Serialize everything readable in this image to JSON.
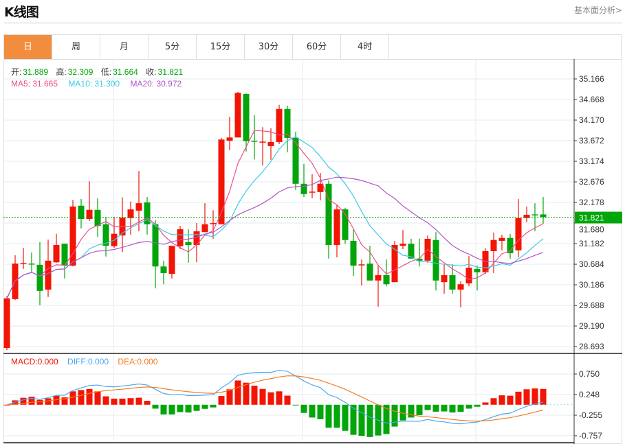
{
  "header": {
    "title": "K线图",
    "link": "基本面分析>"
  },
  "tabs": [
    {
      "label": "日",
      "active": true
    },
    {
      "label": "周"
    },
    {
      "label": "月"
    },
    {
      "label": "5分"
    },
    {
      "label": "15分"
    },
    {
      "label": "30分"
    },
    {
      "label": "60分"
    },
    {
      "label": "4时"
    }
  ],
  "ohlc_legend": {
    "open_label": "开:",
    "open": "31.889",
    "high_label": "高:",
    "high": "32.309",
    "low_label": "低:",
    "low": "31.664",
    "close_label": "收:",
    "close": "31.821"
  },
  "ma_legend": {
    "ma5": "MA5: 31.665",
    "ma10": "MA10: 31.300",
    "ma20": "MA20: 30.972"
  },
  "macd_legend": {
    "macd": "MACD:0.000",
    "diff": "DIFF:0.000",
    "dea": "DEA:0.000"
  },
  "colors": {
    "up": "#f21505",
    "down": "#02a50a",
    "ma5": "#ee4f8a",
    "ma10": "#3dc9e3",
    "ma20": "#b054c8",
    "diff": "#4aa8f0",
    "dea": "#f57c20",
    "accent": "#f28d3d"
  },
  "chart_data": {
    "type": "candlestick",
    "price_axis": {
      "ticks": [
        "35.166",
        "34.668",
        "34.170",
        "33.672",
        "33.174",
        "32.676",
        "32.178",
        "31.680",
        "31.182",
        "30.684",
        "30.186",
        "29.688",
        "29.190",
        "28.693"
      ],
      "range": [
        28.693,
        35.166
      ]
    },
    "current_price": "31.821",
    "macd_axis": {
      "ticks": [
        "0.750",
        "0.248",
        "-0.255",
        "-0.757"
      ],
      "range": [
        -0.757,
        0.75
      ]
    },
    "candles": [
      [
        28.66,
        29.91,
        28.61,
        29.86
      ],
      [
        29.84,
        30.9,
        29.82,
        30.7
      ],
      [
        30.69,
        31.08,
        30.57,
        30.71
      ],
      [
        30.7,
        30.97,
        30.49,
        30.68
      ],
      [
        30.67,
        31.22,
        29.69,
        30.04
      ],
      [
        30.07,
        31.28,
        29.89,
        30.77
      ],
      [
        30.73,
        31.42,
        30.72,
        31.15
      ],
      [
        31.18,
        31.18,
        30.34,
        30.65
      ],
      [
        30.65,
        32.24,
        30.63,
        32.08
      ],
      [
        32.1,
        32.26,
        31.55,
        31.78
      ],
      [
        31.78,
        32.69,
        31.73,
        32.0
      ],
      [
        32.0,
        32.28,
        31.35,
        31.61
      ],
      [
        31.65,
        31.83,
        30.87,
        31.13
      ],
      [
        31.12,
        31.83,
        31.08,
        31.42
      ],
      [
        31.38,
        32.3,
        30.98,
        31.81
      ],
      [
        31.8,
        32.2,
        31.4,
        32.01
      ],
      [
        31.98,
        32.94,
        31.48,
        32.16
      ],
      [
        32.18,
        32.31,
        31.4,
        31.65
      ],
      [
        31.65,
        31.75,
        30.1,
        30.63
      ],
      [
        30.63,
        30.77,
        30.2,
        30.47
      ],
      [
        30.45,
        31.13,
        30.34,
        31.13
      ],
      [
        31.12,
        31.61,
        31.05,
        31.53
      ],
      [
        31.22,
        31.53,
        30.72,
        31.15
      ],
      [
        31.15,
        31.68,
        30.73,
        31.48
      ],
      [
        31.46,
        32.16,
        31.46,
        31.65
      ],
      [
        31.66,
        31.99,
        31.3,
        31.68
      ],
      [
        31.65,
        33.74,
        31.65,
        33.7
      ],
      [
        33.67,
        34.25,
        33.44,
        33.75
      ],
      [
        33.75,
        34.85,
        33.75,
        34.83
      ],
      [
        34.8,
        34.82,
        33.41,
        33.66
      ],
      [
        33.67,
        34.29,
        33.22,
        33.65
      ],
      [
        33.63,
        34.0,
        33.07,
        33.65
      ],
      [
        33.54,
        33.97,
        33.21,
        33.64
      ],
      [
        33.64,
        34.54,
        33.59,
        34.44
      ],
      [
        34.44,
        34.52,
        33.39,
        33.74
      ],
      [
        33.74,
        33.89,
        32.48,
        32.63
      ],
      [
        32.63,
        33.11,
        32.31,
        32.38
      ],
      [
        32.42,
        32.86,
        32.28,
        32.44
      ],
      [
        32.43,
        32.89,
        32.23,
        32.63
      ],
      [
        32.63,
        32.71,
        30.82,
        31.15
      ],
      [
        31.15,
        32.13,
        30.85,
        32.01
      ],
      [
        32.01,
        32.05,
        31.18,
        31.27
      ],
      [
        31.25,
        31.53,
        30.4,
        30.65
      ],
      [
        30.66,
        30.8,
        30.17,
        30.68
      ],
      [
        30.7,
        31.13,
        30.29,
        30.29
      ],
      [
        30.29,
        30.65,
        29.66,
        30.42
      ],
      [
        30.42,
        30.8,
        30.15,
        30.2
      ],
      [
        30.25,
        31.25,
        30.25,
        31.15
      ],
      [
        31.13,
        31.51,
        31.05,
        31.18
      ],
      [
        31.18,
        31.3,
        30.82,
        30.82
      ],
      [
        30.82,
        31.3,
        30.63,
        30.77
      ],
      [
        30.77,
        31.38,
        30.72,
        31.3
      ],
      [
        31.27,
        31.46,
        30.05,
        30.29
      ],
      [
        30.25,
        30.68,
        29.97,
        30.42
      ],
      [
        30.42,
        30.68,
        29.97,
        30.07
      ],
      [
        30.07,
        30.27,
        29.64,
        30.2
      ],
      [
        30.22,
        30.88,
        30.15,
        30.6
      ],
      [
        30.57,
        30.65,
        30.05,
        30.49
      ],
      [
        30.49,
        31.07,
        30.45,
        31.0
      ],
      [
        31.0,
        31.45,
        30.47,
        31.27
      ],
      [
        31.25,
        31.4,
        31.02,
        31.32
      ],
      [
        31.32,
        31.42,
        30.82,
        30.95
      ],
      [
        31.02,
        32.26,
        30.85,
        31.8
      ],
      [
        31.8,
        32.08,
        31.7,
        31.88
      ],
      [
        31.89,
        32.16,
        31.48,
        31.87
      ],
      [
        31.889,
        32.309,
        31.664,
        31.821
      ]
    ]
  }
}
